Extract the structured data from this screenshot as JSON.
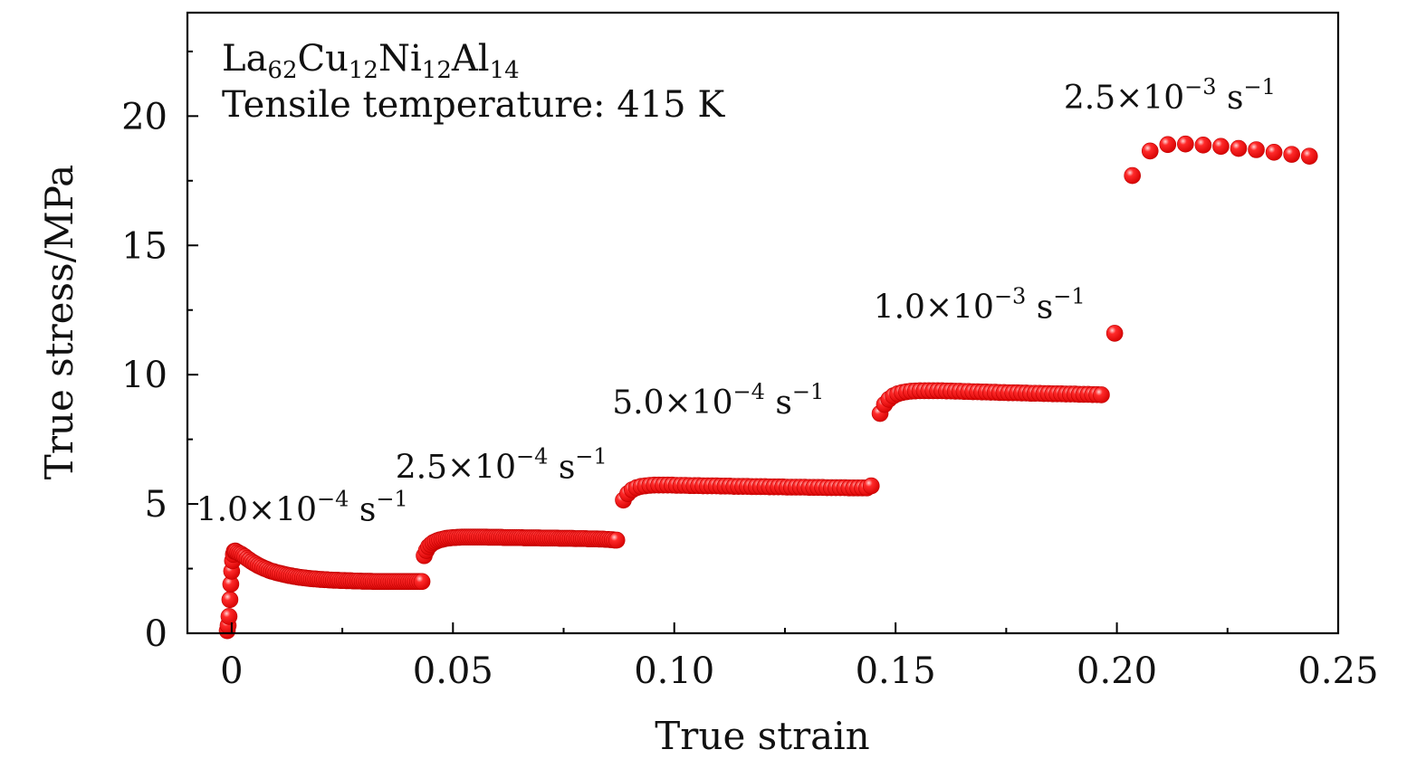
{
  "chart_data": {
    "type": "scatter",
    "title": "",
    "xlabel": "True strain",
    "ylabel": "True stress/MPa",
    "xlim": [
      -0.01,
      0.25
    ],
    "ylim": [
      0,
      24
    ],
    "xticks": [
      0,
      0.05,
      0.1,
      0.15,
      0.2,
      0.25
    ],
    "xtick_labels": [
      "0",
      "0.05",
      "0.10",
      "0.15",
      "0.20",
      "0.25"
    ],
    "yticks": [
      0,
      5,
      10,
      15,
      20
    ],
    "ytick_labels": [
      "0",
      "5",
      "10",
      "15",
      "20"
    ],
    "grid": false,
    "legend": "none",
    "marker_color": "#ff0000",
    "info_lines": [
      {
        "parts": [
          {
            "t": "La"
          },
          {
            "t": "62",
            "sub": true
          },
          {
            "t": "Cu"
          },
          {
            "t": "12",
            "sub": true
          },
          {
            "t": "Ni"
          },
          {
            "t": "12",
            "sub": true
          },
          {
            "t": "Al"
          },
          {
            "t": "14",
            "sub": true
          }
        ]
      },
      {
        "parts": [
          {
            "t": "Tensile temperature: 415 K"
          }
        ]
      }
    ],
    "annotations": [
      {
        "mantissa": "1.0",
        "exponent": "−4",
        "unit": "s",
        "unit_exp": "−1",
        "x": -0.008,
        "y": 4.35
      },
      {
        "mantissa": "2.5",
        "exponent": "−4",
        "unit": "s",
        "unit_exp": "−1",
        "x": 0.037,
        "y": 6.0
      },
      {
        "mantissa": "5.0",
        "exponent": "−4",
        "unit": "s",
        "unit_exp": "−1",
        "x": 0.086,
        "y": 8.5
      },
      {
        "mantissa": "1.0",
        "exponent": "−3",
        "unit": "s",
        "unit_exp": "−1",
        "x": 0.145,
        "y": 12.2
      },
      {
        "mantissa": "2.5",
        "exponent": "−3",
        "unit": "s",
        "unit_exp": "−1",
        "x": 0.188,
        "y": 20.3
      }
    ],
    "series": [
      {
        "strain_rate": "1.0×10−4 s−1",
        "x": [
          -0.001,
          -0.0008,
          -0.0006,
          -0.0004,
          -0.0002,
          0,
          0.0002,
          0.0004,
          0.0006,
          0.0008,
          0.001,
          0.0014,
          0.0018,
          0.0022,
          0.0026,
          0.003,
          0.0035,
          0.004,
          0.0045,
          0.005,
          0.0055,
          0.006,
          0.0065,
          0.007,
          0.0075,
          0.008,
          0.0085,
          0.009,
          0.0095,
          0.01,
          0.0105,
          0.011,
          0.0115,
          0.012,
          0.0125,
          0.013,
          0.0135,
          0.014,
          0.0145,
          0.015,
          0.0155,
          0.016,
          0.0165,
          0.017,
          0.0175,
          0.018,
          0.0185,
          0.019,
          0.0195,
          0.02,
          0.0205,
          0.021,
          0.0215,
          0.022,
          0.0225,
          0.023,
          0.0235,
          0.024,
          0.0245,
          0.025,
          0.0255,
          0.026,
          0.0265,
          0.027,
          0.0275,
          0.028,
          0.0285,
          0.029,
          0.0295,
          0.03,
          0.0305,
          0.031,
          0.0315,
          0.032,
          0.0325,
          0.033,
          0.0335,
          0.034,
          0.0345,
          0.035,
          0.0355,
          0.036,
          0.0365,
          0.037,
          0.0375,
          0.038,
          0.0385,
          0.039,
          0.0395,
          0.04,
          0.0405,
          0.041,
          0.0415,
          0.042,
          0.0425,
          0.043
        ],
        "y": [
          0.1,
          0.3,
          0.65,
          1.3,
          1.9,
          2.4,
          2.8,
          3.05,
          3.17,
          3.18,
          3.16,
          3.12,
          3.08,
          3.05,
          3.0,
          2.96,
          2.89,
          2.83,
          2.77,
          2.72,
          2.67,
          2.62,
          2.58,
          2.54,
          2.5,
          2.47,
          2.43,
          2.4,
          2.38,
          2.35,
          2.33,
          2.31,
          2.29,
          2.27,
          2.25,
          2.23,
          2.22,
          2.2,
          2.19,
          2.17,
          2.16,
          2.15,
          2.14,
          2.13,
          2.12,
          2.11,
          2.1,
          2.1,
          2.09,
          2.08,
          2.08,
          2.07,
          2.07,
          2.06,
          2.06,
          2.05,
          2.05,
          2.05,
          2.04,
          2.04,
          2.04,
          2.03,
          2.03,
          2.03,
          2.02,
          2.02,
          2.02,
          2.02,
          2.01,
          2.01,
          2.01,
          2.01,
          2.01,
          2.0,
          2.0,
          2.0,
          2.0,
          2.0,
          2.0,
          2.0,
          2.0,
          2.0,
          2.0,
          2.0,
          2.0,
          2.0,
          2.0,
          2.0,
          2.0,
          2.0,
          2.0,
          2.0,
          2.0,
          2.0,
          2.0,
          2.0
        ]
      },
      {
        "strain_rate": "2.5×10−4 s−1",
        "x": [
          0.0435,
          0.044,
          0.0445,
          0.045,
          0.0455,
          0.046,
          0.0465,
          0.047,
          0.0475,
          0.048,
          0.0485,
          0.049,
          0.0495,
          0.05,
          0.0505,
          0.051,
          0.0515,
          0.052,
          0.0525,
          0.053,
          0.0535,
          0.054,
          0.0545,
          0.055,
          0.0555,
          0.056,
          0.0565,
          0.057,
          0.0575,
          0.058,
          0.0585,
          0.059,
          0.0595,
          0.06,
          0.0605,
          0.061,
          0.0615,
          0.062,
          0.0625,
          0.063,
          0.0635,
          0.064,
          0.0645,
          0.065,
          0.0655,
          0.066,
          0.0665,
          0.067,
          0.0675,
          0.068,
          0.0685,
          0.069,
          0.0695,
          0.07,
          0.0705,
          0.071,
          0.0715,
          0.072,
          0.0725,
          0.073,
          0.0735,
          0.074,
          0.0745,
          0.075,
          0.0755,
          0.076,
          0.0765,
          0.077,
          0.0775,
          0.078,
          0.0785,
          0.079,
          0.0795,
          0.08,
          0.0805,
          0.081,
          0.0815,
          0.082,
          0.0825,
          0.083,
          0.0835,
          0.084,
          0.0845,
          0.085,
          0.0855,
          0.086,
          0.0865,
          0.087
        ],
        "y": [
          3.0,
          3.2,
          3.35,
          3.43,
          3.5,
          3.54,
          3.58,
          3.61,
          3.63,
          3.65,
          3.67,
          3.68,
          3.69,
          3.7,
          3.7,
          3.71,
          3.71,
          3.72,
          3.72,
          3.72,
          3.72,
          3.72,
          3.72,
          3.72,
          3.72,
          3.72,
          3.72,
          3.72,
          3.72,
          3.71,
          3.71,
          3.71,
          3.71,
          3.71,
          3.71,
          3.71,
          3.7,
          3.7,
          3.7,
          3.7,
          3.7,
          3.7,
          3.7,
          3.7,
          3.7,
          3.69,
          3.69,
          3.69,
          3.69,
          3.69,
          3.69,
          3.69,
          3.69,
          3.68,
          3.68,
          3.68,
          3.68,
          3.68,
          3.68,
          3.68,
          3.68,
          3.67,
          3.67,
          3.67,
          3.67,
          3.67,
          3.67,
          3.67,
          3.66,
          3.66,
          3.66,
          3.66,
          3.66,
          3.66,
          3.65,
          3.65,
          3.65,
          3.65,
          3.65,
          3.64,
          3.64,
          3.64,
          3.63,
          3.63,
          3.62,
          3.62,
          3.6,
          3.6
        ]
      },
      {
        "strain_rate": "5.0×10−4 s−1",
        "x": [
          0.0885,
          0.0895,
          0.0905,
          0.0915,
          0.0925,
          0.0935,
          0.0945,
          0.0955,
          0.0965,
          0.0975,
          0.0985,
          0.0995,
          0.1005,
          0.1015,
          0.1025,
          0.1035,
          0.1045,
          0.1055,
          0.1065,
          0.1075,
          0.1085,
          0.1095,
          0.1105,
          0.1115,
          0.1125,
          0.1135,
          0.1145,
          0.1155,
          0.1165,
          0.1175,
          0.1185,
          0.1195,
          0.1205,
          0.1215,
          0.1225,
          0.1235,
          0.1245,
          0.1255,
          0.1265,
          0.1275,
          0.1285,
          0.1295,
          0.1305,
          0.1315,
          0.1325,
          0.1335,
          0.1345,
          0.1355,
          0.1365,
          0.1375,
          0.1385,
          0.1395,
          0.1405,
          0.1415,
          0.1425,
          0.1435,
          0.1445
        ],
        "y": [
          5.15,
          5.4,
          5.55,
          5.63,
          5.68,
          5.7,
          5.72,
          5.73,
          5.73,
          5.73,
          5.73,
          5.73,
          5.72,
          5.72,
          5.72,
          5.71,
          5.71,
          5.71,
          5.7,
          5.7,
          5.7,
          5.7,
          5.69,
          5.69,
          5.69,
          5.68,
          5.68,
          5.68,
          5.68,
          5.67,
          5.67,
          5.67,
          5.67,
          5.66,
          5.66,
          5.66,
          5.66,
          5.65,
          5.65,
          5.65,
          5.65,
          5.65,
          5.64,
          5.64,
          5.64,
          5.64,
          5.63,
          5.63,
          5.63,
          5.63,
          5.63,
          5.62,
          5.62,
          5.62,
          5.62,
          5.62,
          5.7
        ]
      },
      {
        "strain_rate": "1.0×10−3 s−1",
        "x": [
          0.1465,
          0.1475,
          0.1485,
          0.1495,
          0.1505,
          0.1515,
          0.1525,
          0.1535,
          0.1545,
          0.1555,
          0.1565,
          0.1575,
          0.1585,
          0.1595,
          0.1605,
          0.1615,
          0.1625,
          0.1635,
          0.1645,
          0.1655,
          0.1665,
          0.1675,
          0.1685,
          0.1695,
          0.1705,
          0.1715,
          0.1725,
          0.1735,
          0.1745,
          0.1755,
          0.1765,
          0.1775,
          0.1785,
          0.1795,
          0.1805,
          0.1815,
          0.1825,
          0.1835,
          0.1845,
          0.1855,
          0.1865,
          0.1875,
          0.1885,
          0.1895,
          0.1905,
          0.1915,
          0.1925,
          0.1935,
          0.1945,
          0.1955,
          0.1965,
          0.1995
        ],
        "y": [
          8.5,
          8.85,
          9.05,
          9.18,
          9.26,
          9.31,
          9.34,
          9.36,
          9.37,
          9.38,
          9.38,
          9.38,
          9.38,
          9.38,
          9.38,
          9.37,
          9.37,
          9.36,
          9.36,
          9.35,
          9.35,
          9.34,
          9.34,
          9.33,
          9.33,
          9.32,
          9.32,
          9.31,
          9.31,
          9.3,
          9.3,
          9.3,
          9.29,
          9.29,
          9.28,
          9.28,
          9.28,
          9.27,
          9.27,
          9.26,
          9.26,
          9.26,
          9.25,
          9.25,
          9.25,
          9.24,
          9.24,
          9.24,
          9.23,
          9.23,
          9.22,
          11.6
        ]
      },
      {
        "strain_rate": "2.5×10−3 s−1",
        "x": [
          0.2035,
          0.2075,
          0.2115,
          0.2155,
          0.2195,
          0.2235,
          0.2275,
          0.2315,
          0.2355,
          0.2395,
          0.2435
        ],
        "y": [
          17.7,
          18.65,
          18.9,
          18.92,
          18.88,
          18.83,
          18.75,
          18.7,
          18.6,
          18.52,
          18.45
        ]
      }
    ]
  }
}
